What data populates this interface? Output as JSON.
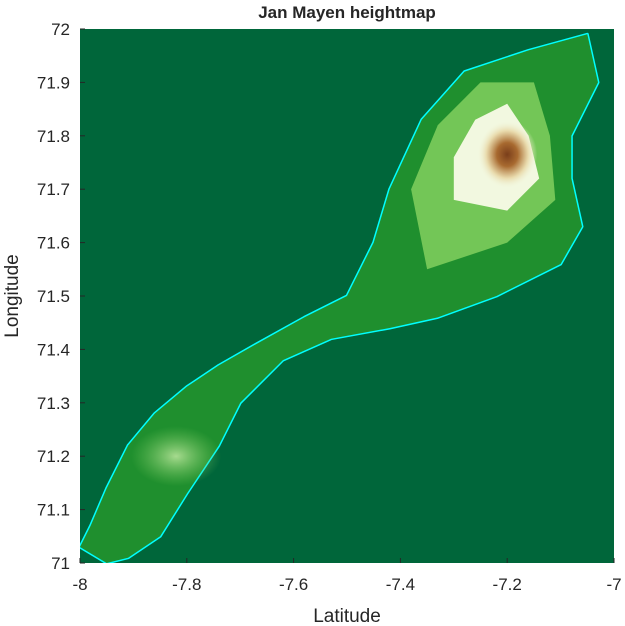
{
  "chart_data": {
    "type": "heatmap",
    "title": "Jan Mayen heightmap",
    "xlabel": "Latitude",
    "ylabel": "Longitude",
    "xlim": [
      -8,
      -7
    ],
    "ylim": [
      71,
      72
    ],
    "xticks": [
      -8,
      -7.8,
      -7.6,
      -7.4,
      -7.2,
      -7
    ],
    "xtick_labels": [
      "-8",
      "-7.8",
      "-7.6",
      "-7.4",
      "-7.2",
      "-7"
    ],
    "yticks": [
      71,
      71.1,
      71.2,
      71.3,
      71.4,
      71.5,
      71.6,
      71.7,
      71.8,
      71.9,
      72
    ],
    "ytick_labels": [
      "71",
      "71.1",
      "71.2",
      "71.3",
      "71.4",
      "71.5",
      "71.6",
      "71.7",
      "71.8",
      "71.9",
      "72"
    ],
    "grid": false,
    "colormap": "dem (green to white to brown)",
    "colors": {
      "sea": "#00663a",
      "coast": "#00ffff",
      "low": "#1f8f2e",
      "mid": "#78c95a",
      "high": "#f2f8e0",
      "peak": "#7a3e1a"
    },
    "island": {
      "outline": [
        [
          -7.95,
          71.0
        ],
        [
          -7.91,
          71.01
        ],
        [
          -7.85,
          71.05
        ],
        [
          -7.8,
          71.13
        ],
        [
          -7.74,
          71.22
        ],
        [
          -7.7,
          71.3
        ],
        [
          -7.62,
          71.38
        ],
        [
          -7.53,
          71.42
        ],
        [
          -7.42,
          71.44
        ],
        [
          -7.33,
          71.46
        ],
        [
          -7.22,
          71.5
        ],
        [
          -7.1,
          71.56
        ],
        [
          -7.06,
          71.63
        ],
        [
          -7.08,
          71.72
        ],
        [
          -7.08,
          71.8
        ],
        [
          -7.03,
          71.9
        ],
        [
          -7.05,
          71.99
        ],
        [
          -7.16,
          71.96
        ],
        [
          -7.28,
          71.92
        ],
        [
          -7.36,
          71.83
        ],
        [
          -7.42,
          71.7
        ],
        [
          -7.45,
          71.6
        ],
        [
          -7.5,
          71.5
        ],
        [
          -7.58,
          71.46
        ],
        [
          -7.67,
          71.41
        ],
        [
          -7.74,
          71.37
        ],
        [
          -7.8,
          71.33
        ],
        [
          -7.86,
          71.28
        ],
        [
          -7.91,
          71.22
        ],
        [
          -7.95,
          71.14
        ],
        [
          -7.98,
          71.07
        ],
        [
          -8.0,
          71.03
        ]
      ],
      "mid_zone": [
        [
          -7.35,
          71.55
        ],
        [
          -7.2,
          71.6
        ],
        [
          -7.11,
          71.68
        ],
        [
          -7.12,
          71.8
        ],
        [
          -7.15,
          71.9
        ],
        [
          -7.25,
          71.9
        ],
        [
          -7.33,
          71.82
        ],
        [
          -7.38,
          71.7
        ]
      ],
      "high_zone": [
        [
          -7.3,
          71.68
        ],
        [
          -7.2,
          71.66
        ],
        [
          -7.14,
          71.72
        ],
        [
          -7.16,
          71.8
        ],
        [
          -7.2,
          71.86
        ],
        [
          -7.26,
          71.83
        ],
        [
          -7.3,
          71.76
        ]
      ],
      "summit": {
        "lon": -7.2,
        "lat": 71.765
      },
      "southern_ridge": {
        "lon": -7.82,
        "lat": 71.2
      }
    }
  }
}
